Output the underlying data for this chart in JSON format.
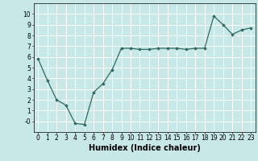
{
  "x": [
    0,
    1,
    2,
    3,
    4,
    5,
    6,
    7,
    8,
    9,
    10,
    11,
    12,
    13,
    14,
    15,
    16,
    17,
    18,
    19,
    20,
    21,
    22,
    23
  ],
  "y": [
    5.8,
    3.8,
    2.0,
    1.5,
    -0.2,
    -0.3,
    2.7,
    3.5,
    4.8,
    6.8,
    6.8,
    6.7,
    6.7,
    6.8,
    6.8,
    6.8,
    6.7,
    6.8,
    6.8,
    9.8,
    9.0,
    8.1,
    8.5,
    8.7
  ],
  "xlabel": "Humidex (Indice chaleur)",
  "ylim": [
    -1,
    11
  ],
  "xlim": [
    -0.5,
    23.5
  ],
  "ytick_vals": [
    0,
    1,
    2,
    3,
    4,
    5,
    6,
    7,
    8,
    9,
    10
  ],
  "ytick_labels": [
    "-0",
    "1",
    "2",
    "3",
    "4",
    "5",
    "6",
    "7",
    "8",
    "9",
    "10"
  ],
  "xticks": [
    0,
    1,
    2,
    3,
    4,
    5,
    6,
    7,
    8,
    9,
    10,
    11,
    12,
    13,
    14,
    15,
    16,
    17,
    18,
    19,
    20,
    21,
    22,
    23
  ],
  "line_color": "#2e6b5e",
  "marker": "D",
  "marker_size": 1.8,
  "bg_color": "#c8e8e8",
  "grid_color": "#ffffff",
  "xlabel_fontsize": 7,
  "tick_fontsize": 5.5
}
